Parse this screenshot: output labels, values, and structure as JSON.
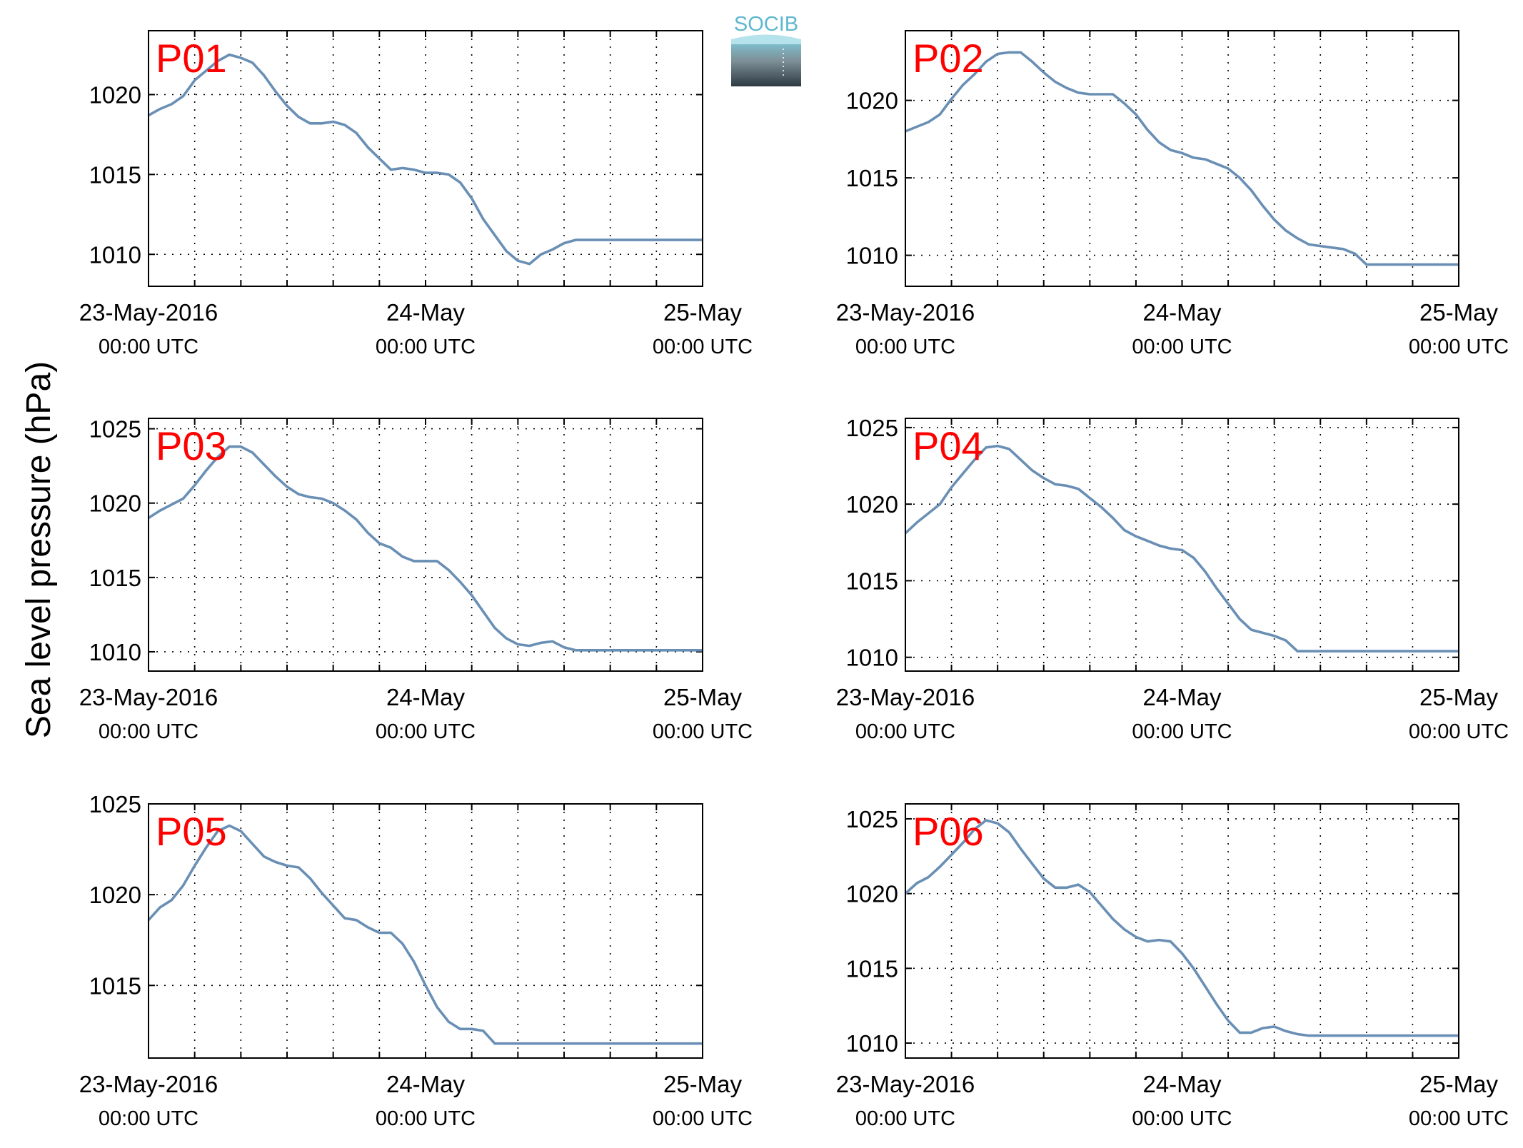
{
  "figure": {
    "ylabel": "Sea level pressure (hPa)",
    "logo_text": "SOCIB"
  },
  "colors": {
    "series": "#6a8fb5",
    "panel_label": "#ff0000",
    "logo_top": "#5fb8cf",
    "logo_bottom": "#2d3a44"
  },
  "chart_data": [
    {
      "type": "line",
      "panel": "P01",
      "ylim": [
        1008,
        1024
      ],
      "yticks": [
        1010,
        1015,
        1020
      ],
      "xlim": [
        0,
        48
      ],
      "grid": true,
      "xticklabels": [
        {
          "x": 0,
          "line1": "23-May-2016",
          "line2": "00:00 UTC"
        },
        {
          "x": 24,
          "line1": "24-May",
          "line2": "00:00 UTC"
        },
        {
          "x": 48,
          "line1": "25-May",
          "line2": "00:00 UTC"
        }
      ],
      "x": [
        0,
        1,
        2,
        3,
        4,
        5,
        6,
        7,
        8,
        9,
        10,
        11,
        12,
        13,
        14,
        15,
        16,
        17,
        18,
        19,
        20,
        21,
        22,
        23,
        24,
        25,
        26,
        27,
        28,
        29,
        30,
        31,
        32,
        33,
        34,
        35,
        36,
        37,
        38,
        39,
        40,
        41,
        42,
        43,
        44,
        45,
        46,
        47,
        48
      ],
      "y": [
        1018.7,
        1019.1,
        1019.4,
        1019.9,
        1020.9,
        1021.5,
        1022.1,
        1022.5,
        1022.3,
        1022.0,
        1021.2,
        1020.2,
        1019.3,
        1018.6,
        1018.2,
        1018.2,
        1018.3,
        1018.1,
        1017.6,
        1016.7,
        1016.0,
        1015.3,
        1015.4,
        1015.3,
        1015.1,
        1015.1,
        1015.0,
        1014.5,
        1013.5,
        1012.2,
        1011.2,
        1010.2,
        1009.6,
        1009.4,
        1010.0,
        1010.3,
        1010.7,
        1010.9,
        1010.9,
        1010.9,
        1010.9,
        1010.9,
        1010.9,
        1010.9,
        1010.9,
        1010.9,
        1010.9,
        1010.9,
        1010.9
      ]
    },
    {
      "type": "line",
      "panel": "P02",
      "ylim": [
        1008,
        1024.5
      ],
      "yticks": [
        1010,
        1015,
        1020
      ],
      "xlim": [
        0,
        48
      ],
      "grid": true,
      "xticklabels": [
        {
          "x": 0,
          "line1": "23-May-2016",
          "line2": "00:00 UTC"
        },
        {
          "x": 24,
          "line1": "24-May",
          "line2": "00:00 UTC"
        },
        {
          "x": 48,
          "line1": "25-May",
          "line2": "00:00 UTC"
        }
      ],
      "x": [
        0,
        1,
        2,
        3,
        4,
        5,
        6,
        7,
        8,
        9,
        10,
        11,
        12,
        13,
        14,
        15,
        16,
        17,
        18,
        19,
        20,
        21,
        22,
        23,
        24,
        25,
        26,
        27,
        28,
        29,
        30,
        31,
        32,
        33,
        34,
        35,
        36,
        37,
        38,
        39,
        40,
        41,
        42,
        43,
        44,
        45,
        46,
        47,
        48
      ],
      "y": [
        1018.0,
        1018.3,
        1018.6,
        1019.1,
        1020.1,
        1021.0,
        1021.7,
        1022.5,
        1023.0,
        1023.1,
        1023.1,
        1022.5,
        1021.8,
        1021.2,
        1020.8,
        1020.5,
        1020.4,
        1020.4,
        1020.4,
        1019.8,
        1019.1,
        1018.1,
        1017.3,
        1016.8,
        1016.6,
        1016.3,
        1016.2,
        1015.9,
        1015.6,
        1015.0,
        1014.2,
        1013.2,
        1012.3,
        1011.6,
        1011.1,
        1010.7,
        1010.6,
        1010.5,
        1010.4,
        1010.1,
        1009.4,
        1009.4,
        1009.4,
        1009.4,
        1009.4,
        1009.4,
        1009.4,
        1009.4,
        1009.4
      ]
    },
    {
      "type": "line",
      "panel": "P03",
      "ylim": [
        1008.7,
        1025.7
      ],
      "yticks": [
        1010,
        1015,
        1020,
        1025
      ],
      "xlim": [
        0,
        48
      ],
      "grid": true,
      "xticklabels": [
        {
          "x": 0,
          "line1": "23-May-2016",
          "line2": "00:00 UTC"
        },
        {
          "x": 24,
          "line1": "24-May",
          "line2": "00:00 UTC"
        },
        {
          "x": 48,
          "line1": "25-May",
          "line2": "00:00 UTC"
        }
      ],
      "x": [
        0,
        1,
        2,
        3,
        4,
        5,
        6,
        7,
        8,
        9,
        10,
        11,
        12,
        13,
        14,
        15,
        16,
        17,
        18,
        19,
        20,
        21,
        22,
        23,
        24,
        25,
        26,
        27,
        28,
        29,
        30,
        31,
        32,
        33,
        34,
        35,
        36,
        37,
        38,
        39,
        40,
        41,
        42,
        43,
        44,
        45,
        46,
        47,
        48
      ],
      "y": [
        1019.0,
        1019.5,
        1019.9,
        1020.3,
        1021.2,
        1022.2,
        1023.1,
        1023.8,
        1023.8,
        1023.4,
        1022.6,
        1021.8,
        1021.1,
        1020.6,
        1020.4,
        1020.3,
        1020.0,
        1019.5,
        1018.9,
        1018.0,
        1017.3,
        1017.0,
        1016.4,
        1016.1,
        1016.1,
        1016.1,
        1015.5,
        1014.7,
        1013.8,
        1012.7,
        1011.6,
        1010.9,
        1010.5,
        1010.4,
        1010.6,
        1010.7,
        1010.3,
        1010.1,
        1010.1,
        1010.1,
        1010.1,
        1010.1,
        1010.1,
        1010.1,
        1010.1,
        1010.1,
        1010.1,
        1010.1,
        1010.1
      ]
    },
    {
      "type": "line",
      "panel": "P04",
      "ylim": [
        1009.1,
        1025.6
      ],
      "yticks": [
        1010,
        1015,
        1020,
        1025
      ],
      "xlim": [
        0,
        48
      ],
      "grid": true,
      "xticklabels": [
        {
          "x": 0,
          "line1": "23-May-2016",
          "line2": "00:00 UTC"
        },
        {
          "x": 24,
          "line1": "24-May",
          "line2": "00:00 UTC"
        },
        {
          "x": 48,
          "line1": "25-May",
          "line2": "00:00 UTC"
        }
      ],
      "x": [
        0,
        1,
        2,
        3,
        4,
        5,
        6,
        7,
        8,
        9,
        10,
        11,
        12,
        13,
        14,
        15,
        16,
        17,
        18,
        19,
        20,
        21,
        22,
        23,
        24,
        25,
        26,
        27,
        28,
        29,
        30,
        31,
        32,
        33,
        34,
        35,
        36,
        37,
        38,
        39,
        40,
        41,
        42,
        43,
        44,
        45,
        46,
        47,
        48
      ],
      "y": [
        1018.1,
        1018.8,
        1019.4,
        1020.0,
        1021.1,
        1022.0,
        1022.9,
        1023.7,
        1023.8,
        1023.6,
        1022.9,
        1022.2,
        1021.7,
        1021.3,
        1021.2,
        1021.0,
        1020.4,
        1019.8,
        1019.1,
        1018.3,
        1017.9,
        1017.6,
        1017.3,
        1017.1,
        1017.0,
        1016.5,
        1015.6,
        1014.5,
        1013.5,
        1012.5,
        1011.8,
        1011.6,
        1011.4,
        1011.1,
        1010.4,
        1010.4,
        1010.4,
        1010.4,
        1010.4,
        1010.4,
        1010.4,
        1010.4,
        1010.4,
        1010.4,
        1010.4,
        1010.4,
        1010.4,
        1010.4,
        1010.4
      ]
    },
    {
      "type": "line",
      "panel": "P05",
      "ylim": [
        1011,
        1025
      ],
      "yticks": [
        1015,
        1020,
        1025
      ],
      "xlim": [
        0,
        48
      ],
      "grid": true,
      "xticklabels": [
        {
          "x": 0,
          "line1": "23-May-2016",
          "line2": "00:00 UTC"
        },
        {
          "x": 24,
          "line1": "24-May",
          "line2": "00:00 UTC"
        },
        {
          "x": 48,
          "line1": "25-May",
          "line2": "00:00 UTC"
        }
      ],
      "x": [
        0,
        1,
        2,
        3,
        4,
        5,
        6,
        7,
        8,
        9,
        10,
        11,
        12,
        13,
        14,
        15,
        16,
        17,
        18,
        19,
        20,
        21,
        22,
        23,
        24,
        25,
        26,
        27,
        28,
        29,
        30,
        31,
        32,
        33,
        34,
        35,
        36,
        37,
        38,
        39,
        40,
        41,
        42,
        43,
        44,
        45,
        46,
        47,
        48
      ],
      "y": [
        1018.6,
        1019.3,
        1019.7,
        1020.5,
        1021.6,
        1022.6,
        1023.5,
        1023.8,
        1023.5,
        1022.8,
        1022.1,
        1021.8,
        1021.6,
        1021.5,
        1020.9,
        1020.1,
        1019.4,
        1018.7,
        1018.6,
        1018.2,
        1017.9,
        1017.9,
        1017.3,
        1016.3,
        1015.0,
        1013.8,
        1013.0,
        1012.6,
        1012.6,
        1012.5,
        1011.8,
        1011.8,
        1011.8,
        1011.8,
        1011.8,
        1011.8,
        1011.8,
        1011.8,
        1011.8,
        1011.8,
        1011.8,
        1011.8,
        1011.8,
        1011.8,
        1011.8,
        1011.8,
        1011.8,
        1011.8,
        1011.8
      ]
    },
    {
      "type": "line",
      "panel": "P06",
      "ylim": [
        1009,
        1026
      ],
      "yticks": [
        1010,
        1015,
        1020,
        1025
      ],
      "xlim": [
        0,
        48
      ],
      "grid": true,
      "xticklabels": [
        {
          "x": 0,
          "line1": "23-May-2016",
          "line2": "00:00 UTC"
        },
        {
          "x": 24,
          "line1": "24-May",
          "line2": "00:00 UTC"
        },
        {
          "x": 48,
          "line1": "25-May",
          "line2": "00:00 UTC"
        }
      ],
      "x": [
        0,
        1,
        2,
        3,
        4,
        5,
        6,
        7,
        8,
        9,
        10,
        11,
        12,
        13,
        14,
        15,
        16,
        17,
        18,
        19,
        20,
        21,
        22,
        23,
        24,
        25,
        26,
        27,
        28,
        29,
        30,
        31,
        32,
        33,
        34,
        35,
        36,
        37,
        38,
        39,
        40,
        41,
        42,
        43,
        44,
        45,
        46,
        47,
        48
      ],
      "y": [
        1020.0,
        1020.7,
        1021.1,
        1021.8,
        1022.6,
        1023.4,
        1024.3,
        1024.9,
        1024.7,
        1024.1,
        1023.0,
        1022.0,
        1021.0,
        1020.4,
        1020.4,
        1020.6,
        1020.1,
        1019.2,
        1018.3,
        1017.6,
        1017.1,
        1016.8,
        1016.9,
        1016.8,
        1016.0,
        1015.0,
        1013.8,
        1012.6,
        1011.5,
        1010.7,
        1010.7,
        1011.0,
        1011.1,
        1010.8,
        1010.6,
        1010.5,
        1010.5,
        1010.5,
        1010.5,
        1010.5,
        1010.5,
        1010.5,
        1010.5,
        1010.5,
        1010.5,
        1010.5,
        1010.5,
        1010.5,
        1010.5
      ]
    }
  ]
}
